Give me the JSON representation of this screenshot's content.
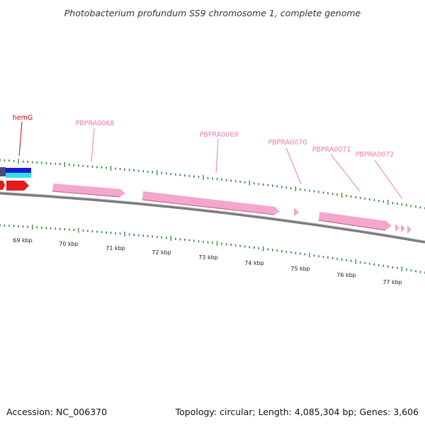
{
  "title": "Photobacterium profundum SS9 chromosome 1, complete genome",
  "accession": "Accession: NC_006370",
  "summary": "Topology: circular; Length: 4,085,304 bp; Genes: 3,606",
  "colors": {
    "backbone": "#808080",
    "tick": "#2e8b2e",
    "gene_pink": "#f4a6cd",
    "gene_red": "#e41a1c",
    "gene_blue": "#1c1ccc",
    "gene_cyan": "#33e0e8",
    "gene_dark": "#4a4a7a",
    "label_red": "#cc0000",
    "label_pink": "#e87cb0"
  },
  "genes": [
    {
      "label": "hemG",
      "color": "label_red"
    },
    {
      "label": "PBPRA0068",
      "color": "label_pink"
    },
    {
      "label": "PBPRA0069",
      "color": "label_pink"
    },
    {
      "label": "PBPRA0070",
      "color": "label_pink"
    },
    {
      "label": "PBPRA0071",
      "color": "label_pink"
    },
    {
      "label": "PBPRA0072",
      "color": "label_pink"
    }
  ],
  "kbp_labels": [
    "69 kbp",
    "70 kbp",
    "71 kbp",
    "72 kbp",
    "73 kbp",
    "74 kbp",
    "75 kbp",
    "76 kbp",
    "77 kbp"
  ]
}
